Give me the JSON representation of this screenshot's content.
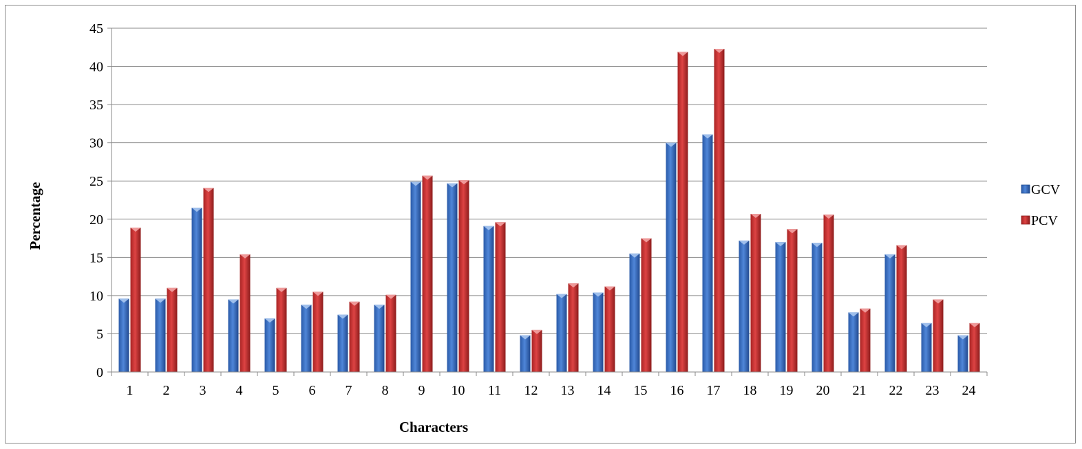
{
  "chart_data": {
    "type": "bar",
    "title": "",
    "xlabel": "Characters",
    "ylabel": "Percentage",
    "ylim": [
      0,
      45
    ],
    "yticks": [
      0,
      5,
      10,
      15,
      20,
      25,
      30,
      35,
      40,
      45
    ],
    "grid": true,
    "legend_position": "right",
    "categories": [
      "1",
      "2",
      "3",
      "4",
      "5",
      "6",
      "7",
      "8",
      "9",
      "10",
      "11",
      "12",
      "13",
      "14",
      "15",
      "16",
      "17",
      "18",
      "19",
      "20",
      "21",
      "22",
      "23",
      "24"
    ],
    "series": [
      {
        "name": "GCV",
        "color": "#3f74c6",
        "values": [
          9.6,
          9.6,
          21.5,
          9.5,
          7.0,
          8.8,
          7.5,
          8.8,
          24.9,
          24.7,
          19.1,
          4.8,
          10.2,
          10.4,
          15.5,
          30.0,
          31.1,
          17.2,
          17.0,
          16.9,
          7.8,
          15.4,
          6.4,
          4.8
        ]
      },
      {
        "name": "PCV",
        "color": "#cc3333",
        "values": [
          18.9,
          11.0,
          24.1,
          15.4,
          11.0,
          10.5,
          9.2,
          10.1,
          25.7,
          25.1,
          19.6,
          5.5,
          11.6,
          11.2,
          17.5,
          41.9,
          42.3,
          20.7,
          18.7,
          20.6,
          8.3,
          16.6,
          9.5,
          6.4
        ]
      }
    ]
  }
}
